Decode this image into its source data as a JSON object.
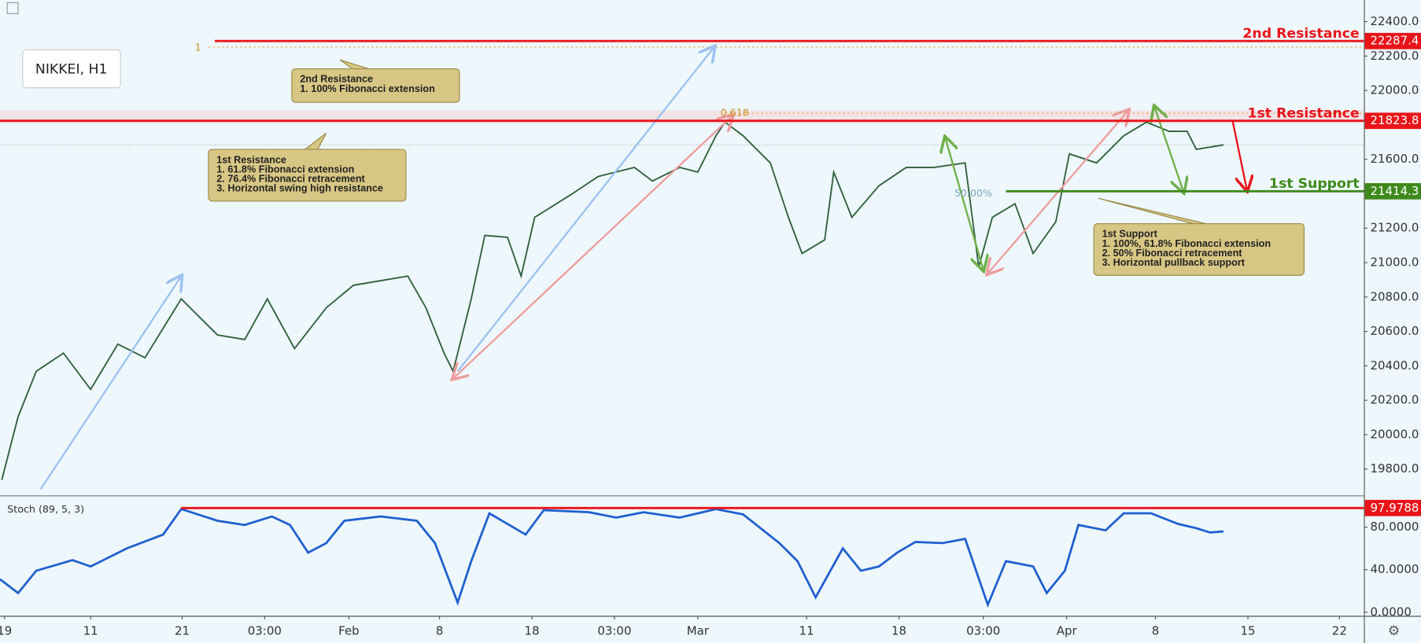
{
  "chart_data": [
    {
      "type": "line",
      "title": "NIKKEI, H1",
      "color": "#2f5f3c",
      "x": [
        0.2,
        2,
        4,
        7,
        10,
        13,
        16,
        20,
        24,
        27,
        29.5,
        32.5,
        36,
        39,
        42,
        45,
        47,
        49,
        50,
        52,
        53.5,
        56,
        57.5,
        59,
        63,
        66,
        70,
        72,
        75,
        77,
        79,
        80,
        82,
        85,
        87,
        88.5,
        91,
        92,
        94,
        97,
        100,
        103,
        106.5,
        108,
        109.5,
        112,
        114,
        116.5,
        118,
        121,
        124,
        126.5,
        129,
        131,
        132,
        135
      ],
      "values": [
        19737,
        20105,
        20368,
        20474,
        20263,
        20526,
        20447,
        20789,
        20579,
        20553,
        20789,
        20500,
        20737,
        20868,
        20895,
        20921,
        20737,
        20474,
        20368,
        20789,
        21158,
        21147,
        20921,
        21263,
        21395,
        21500,
        21553,
        21474,
        21553,
        21526,
        21737,
        21816,
        21737,
        21579,
        21263,
        21053,
        21132,
        21526,
        21263,
        21447,
        21553,
        21553,
        21579,
        20974,
        21263,
        21342,
        21053,
        21237,
        21632,
        21579,
        21737,
        21816,
        21763,
        21763,
        21658,
        21684
      ],
      "xlim": [
        0,
        150.5
      ],
      "ylim": [
        19647,
        22526
      ],
      "yticks": [
        {
          "value": 19800,
          "label": "19800.0"
        },
        {
          "value": 20000,
          "label": "20000.0"
        },
        {
          "value": 20200,
          "label": "20200.0"
        },
        {
          "value": 20400,
          "label": "20400.0"
        },
        {
          "value": 20600,
          "label": "20600.0"
        },
        {
          "value": 20800,
          "label": "20800.0"
        },
        {
          "value": 21000,
          "label": "21000.0"
        },
        {
          "value": 21200,
          "label": "21200.0"
        },
        {
          "value": 21400,
          "label": "21400.0"
        },
        {
          "value": 21600,
          "label": "21600.0"
        },
        {
          "value": 21800,
          "label": "21800.0"
        },
        {
          "value": 22000,
          "label": "22000.0"
        },
        {
          "value": 22200,
          "label": "22200.0"
        },
        {
          "value": 22400,
          "label": "22400.0"
        }
      ],
      "xticks": [
        {
          "value": 0.5,
          "label": "19"
        },
        {
          "value": 10,
          "label": "11"
        },
        {
          "value": 20.1,
          "label": "21"
        },
        {
          "value": 29.2,
          "label": "03:00"
        },
        {
          "value": 38.5,
          "label": "Feb"
        },
        {
          "value": 48.5,
          "label": "8"
        },
        {
          "value": 58.7,
          "label": "18"
        },
        {
          "value": 67.8,
          "label": "03:00"
        },
        {
          "value": 77,
          "label": "Mar"
        },
        {
          "value": 89,
          "label": "11"
        },
        {
          "value": 99.2,
          "label": "18"
        },
        {
          "value": 108.5,
          "label": "03:00"
        },
        {
          "value": 117.7,
          "label": "Apr"
        },
        {
          "value": 127.5,
          "label": "8"
        },
        {
          "value": 137.7,
          "label": "15"
        },
        {
          "value": 147.8,
          "label": "22"
        }
      ],
      "levels": [
        {
          "name": "2nd Resistance",
          "value": 22287.4,
          "color": "#e8141a"
        },
        {
          "name": "1st Resistance",
          "value": 21823.8,
          "color": "#e8141a"
        },
        {
          "name": "1st Support",
          "value": 21414.3,
          "color": "#3e8a1c"
        }
      ],
      "fib_labels": [
        "1",
        "0.618",
        "50.00%"
      ],
      "annotations": [
        {
          "lines": [
            "2nd Resistance",
            "1. 100% Fibonacci extension"
          ]
        },
        {
          "lines": [
            "1st Resistance",
            "1. 61.8% Fibonacci extension",
            "2. 76.4% Fibonacci retracement",
            "3. Horizontal swing high resistance"
          ]
        },
        {
          "lines": [
            "1st Support",
            "1. 100%, 61.8% Fibonacci extension",
            "2. 50% Fibonacci retracement",
            "3. Horizontal pullback support"
          ]
        }
      ]
    },
    {
      "type": "line",
      "title": "Stoch (89, 5, 3)",
      "color": "#1f5fcf",
      "x": [
        0,
        2,
        4,
        8,
        10,
        14,
        18,
        20,
        24,
        27,
        30,
        32,
        34,
        36,
        38,
        42,
        46,
        48,
        50.5,
        52,
        54,
        58,
        60,
        65,
        68,
        71,
        75,
        79,
        82,
        86,
        88,
        90,
        93,
        95,
        97,
        99,
        101,
        104,
        106.5,
        109,
        111,
        114,
        115.5,
        117.5,
        119,
        122,
        124,
        127,
        130,
        132,
        133.5,
        135
      ],
      "values": [
        31,
        18,
        39,
        49,
        43,
        60,
        73,
        97,
        86,
        82,
        90,
        82,
        56,
        65,
        86,
        90,
        86,
        65,
        9,
        48,
        93,
        73,
        96,
        94,
        89,
        94,
        89,
        97,
        92,
        65,
        48,
        14,
        60,
        39,
        43,
        56,
        66,
        65,
        69,
        7,
        48,
        43,
        18,
        39,
        82,
        77,
        93,
        93,
        83,
        79,
        75,
        76
      ],
      "xlim": [
        0,
        150.5
      ],
      "ylim": [
        -3.4,
        109
      ],
      "yticks": [
        {
          "value": 0,
          "label": "0.0000"
        },
        {
          "value": 40,
          "label": "40.0000"
        },
        {
          "value": 80,
          "label": "80.0000"
        }
      ],
      "level": {
        "value": 97.9788,
        "color": "#e8141a"
      }
    }
  ]
}
